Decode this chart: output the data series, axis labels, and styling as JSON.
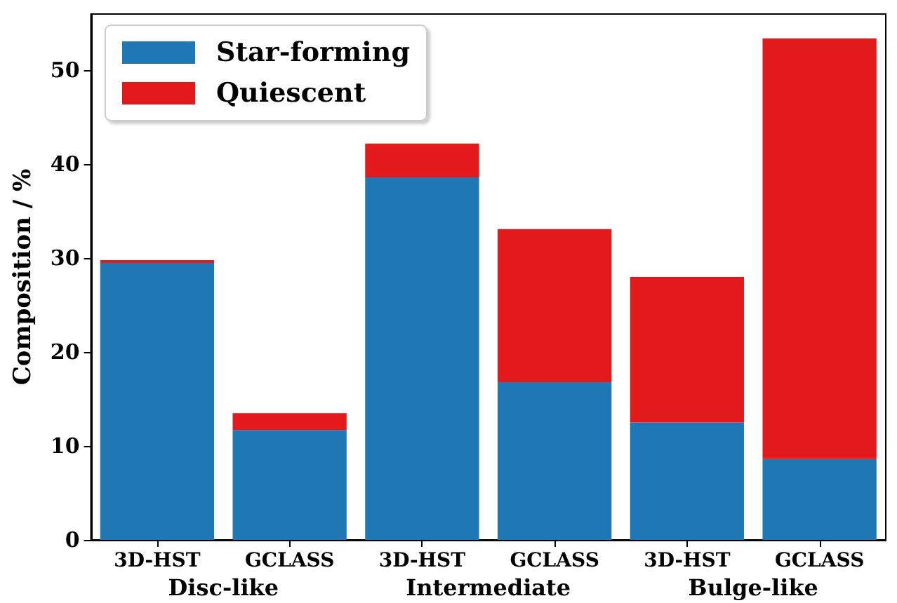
{
  "chart_data": {
    "type": "bar",
    "stacked": true,
    "ylabel": "Composition / %",
    "categories": [
      "3D-HST",
      "GCLASS",
      "3D-HST",
      "GCLASS",
      "3D-HST",
      "GCLASS"
    ],
    "series": [
      {
        "name": "Star-forming",
        "color": "#1f77b4",
        "values": [
          29.5,
          11.7,
          38.6,
          16.8,
          12.5,
          8.6
        ]
      },
      {
        "name": "Quiescent",
        "color": "#e31a1c",
        "values": [
          0.3,
          1.8,
          3.6,
          16.3,
          15.5,
          44.8
        ]
      }
    ],
    "annotations": [
      "Disc-like",
      "Intermediate",
      "Bulge-like"
    ],
    "ylim": [
      0,
      56
    ],
    "yticks": [
      0,
      10,
      20,
      30,
      40,
      50
    ],
    "grid": false,
    "legend": "top left"
  }
}
